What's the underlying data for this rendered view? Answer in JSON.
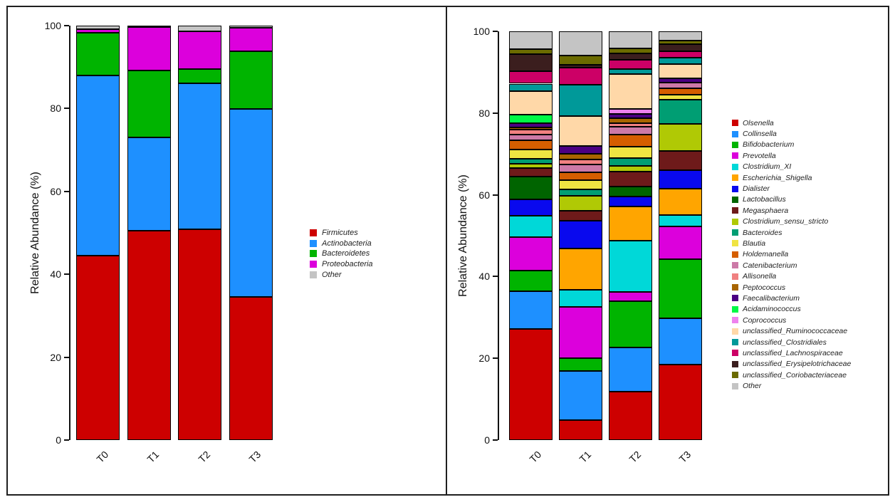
{
  "page": {
    "background": "#ffffff"
  },
  "chart_data": [
    {
      "id": "phylum-relative-abundance",
      "type": "stacked-bar",
      "title": "",
      "xlabel": "",
      "ylabel": "Relative Abundance (%)",
      "ylim": [
        0,
        100
      ],
      "yticks": [
        0,
        20,
        40,
        60,
        80,
        100
      ],
      "grid": false,
      "legend_position": "right",
      "categories": [
        "T0",
        "T1",
        "T2",
        "T3"
      ],
      "series": [
        {
          "name": "Firmicutes",
          "color": "#CD0000",
          "values": [
            44.5,
            50.6,
            50.9,
            34.5
          ]
        },
        {
          "name": "Actinobacteria",
          "color": "#1E90FF",
          "values": [
            43.5,
            22.5,
            35.2,
            45.4
          ]
        },
        {
          "name": "Bacteroidetes",
          "color": "#00B400",
          "values": [
            10.2,
            16.0,
            3.4,
            14.0
          ]
        },
        {
          "name": "Proteobacteria",
          "color": "#DC00DC",
          "values": [
            1.0,
            10.6,
            9.1,
            5.6
          ]
        },
        {
          "name": "Other",
          "color": "#C4C4C4",
          "values": [
            0.8,
            0.3,
            1.4,
            0.5
          ]
        }
      ]
    },
    {
      "id": "genus-relative-abundance",
      "type": "stacked-bar",
      "title": "",
      "xlabel": "",
      "ylabel": "Relative Abundance (%)",
      "ylim": [
        0,
        100
      ],
      "yticks": [
        0,
        20,
        40,
        60,
        80,
        100
      ],
      "grid": false,
      "legend_position": "right",
      "categories": [
        "T0",
        "T1",
        "T2",
        "T3"
      ],
      "series": [
        {
          "name": "Olsenella",
          "color": "#CD0000",
          "values": [
            27.1,
            4.8,
            11.8,
            18.5
          ]
        },
        {
          "name": "Collinsella",
          "color": "#1E90FF",
          "values": [
            9.3,
            12.1,
            10.9,
            11.3
          ]
        },
        {
          "name": "Bifidobacterium",
          "color": "#00B400",
          "values": [
            5.1,
            3.2,
            11.2,
            14.5
          ]
        },
        {
          "name": "Prevotella",
          "color": "#DC00DC",
          "values": [
            8.1,
            12.5,
            2.3,
            8.0
          ]
        },
        {
          "name": "Clostridium_XI",
          "color": "#00D8D8",
          "values": [
            5.2,
            4.2,
            12.5,
            2.8
          ]
        },
        {
          "name": "Escherichia_Shigella",
          "color": "#FFA500",
          "values": [
            0,
            10.0,
            8.4,
            6.4
          ]
        },
        {
          "name": "Dialister",
          "color": "#0909EE",
          "values": [
            4.1,
            6.9,
            2.5,
            4.6
          ]
        },
        {
          "name": "Lactobacillus",
          "color": "#006400",
          "values": [
            5.5,
            0,
            2.4,
            0
          ]
        },
        {
          "name": "Megasphaera",
          "color": "#6E1A1A",
          "values": [
            2.2,
            2.4,
            3.7,
            4.6
          ]
        },
        {
          "name": "Clostridium_sensu_stricto",
          "color": "#B0C905",
          "values": [
            1.0,
            3.6,
            1.4,
            6.7
          ]
        },
        {
          "name": "Bacteroides",
          "color": "#009E73",
          "values": [
            1.3,
            1.6,
            1.9,
            5.8
          ]
        },
        {
          "name": "Blautia",
          "color": "#F0E442",
          "values": [
            2.2,
            2.3,
            2.8,
            1.3
          ]
        },
        {
          "name": "Holdemanella",
          "color": "#D55E00",
          "values": [
            2.3,
            1.9,
            3.0,
            1.6
          ]
        },
        {
          "name": "Catenibacterium",
          "color": "#CC79A7",
          "values": [
            1.3,
            1.9,
            1.9,
            1.3
          ]
        },
        {
          "name": "Allisonella",
          "color": "#F08080",
          "values": [
            1.3,
            1.3,
            0.9,
            0
          ]
        },
        {
          "name": "Peptococcus",
          "color": "#A86500",
          "values": [
            0.4,
            1.3,
            1.2,
            0
          ]
        },
        {
          "name": "Faecalibacterium",
          "color": "#4B0082",
          "values": [
            1.2,
            1.9,
            1.0,
            1.1
          ]
        },
        {
          "name": "Acidaminococcus",
          "color": "#00F846",
          "values": [
            2.0,
            0,
            0,
            0
          ]
        },
        {
          "name": "Coprococcus",
          "color": "#EE82EE",
          "values": [
            0,
            0,
            1.3,
            0
          ]
        },
        {
          "name": "unclassified_Ruminococcaceae",
          "color": "#FFD8A8",
          "values": [
            5.7,
            7.3,
            8.4,
            3.5
          ]
        },
        {
          "name": "unclassified_Clostridiales",
          "color": "#009999",
          "values": [
            1.9,
            7.8,
            1.3,
            1.5
          ]
        },
        {
          "name": "unclassified_Lachnospiraceae",
          "color": "#CC0066",
          "values": [
            3.0,
            4.2,
            2.2,
            1.7
          ]
        },
        {
          "name": "unclassified_Erysipelotrichaceae",
          "color": "#3B1E1E",
          "values": [
            4.2,
            0.7,
            1.6,
            1.6
          ]
        },
        {
          "name": "unclassified_Coriobacteriaceae",
          "color": "#6B6B00",
          "values": [
            1.3,
            2.1,
            1.3,
            0.9
          ]
        },
        {
          "name": "Other",
          "color": "#C4C4C4",
          "values": [
            4.3,
            6.0,
            4.1,
            2.3
          ]
        }
      ]
    }
  ]
}
